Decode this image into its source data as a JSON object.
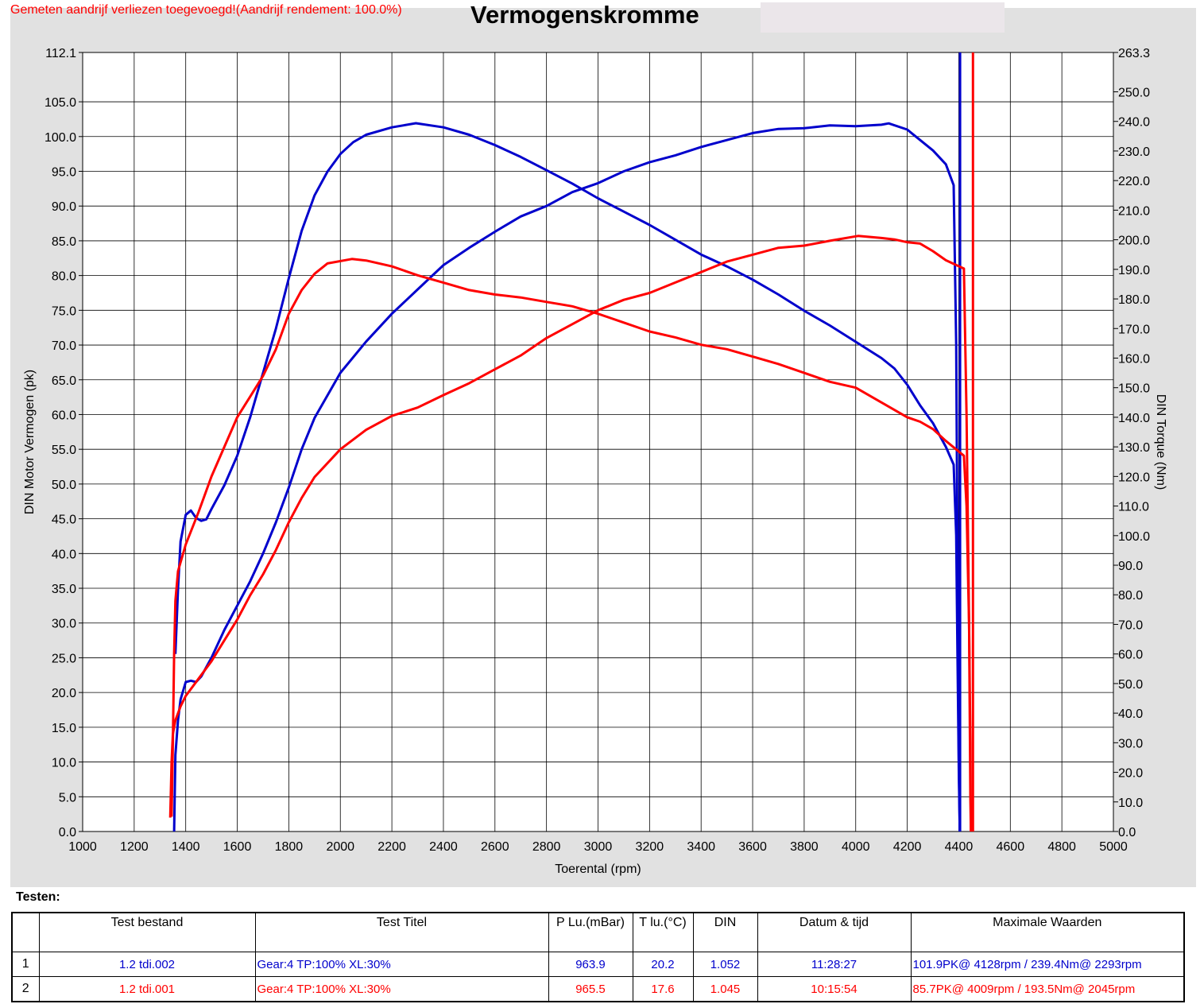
{
  "header": {
    "warning": "Gemeten aandrijf verliezen toegevoegd!(Aandrijf rendement: 100.0%)",
    "title": "Vermogenskromme"
  },
  "colors": {
    "run1": "#0000cc",
    "run2": "#ff0000",
    "panel": "#e1e1e1",
    "grid": "#000000"
  },
  "chart_data": {
    "type": "line",
    "title": "Vermogenskromme",
    "xlabel": "Toerental (rpm)",
    "ylabel": "DIN Motor Vermogen (pk)",
    "y2label": "DIN Torque (Nm)",
    "xlim": [
      1000,
      5000
    ],
    "ylim": [
      0,
      112.1
    ],
    "y2lim": [
      0,
      263.3
    ],
    "x_ticks": [
      "1000",
      "1200",
      "1400",
      "1600",
      "1800",
      "2000",
      "2200",
      "2400",
      "2600",
      "2800",
      "3000",
      "3200",
      "3400",
      "3600",
      "3800",
      "4000",
      "4200",
      "4400",
      "4600",
      "4800",
      "5000"
    ],
    "y_ticks": [
      {
        "v": 0,
        "label": "0.0"
      },
      {
        "v": 5,
        "label": "5.0"
      },
      {
        "v": 10,
        "label": "10.0"
      },
      {
        "v": 15,
        "label": "15.0"
      },
      {
        "v": 20,
        "label": "20.0"
      },
      {
        "v": 25,
        "label": "25.0"
      },
      {
        "v": 30,
        "label": "30.0"
      },
      {
        "v": 35,
        "label": "35.0"
      },
      {
        "v": 40,
        "label": "40.0"
      },
      {
        "v": 45,
        "label": "45.0"
      },
      {
        "v": 50,
        "label": "50.0"
      },
      {
        "v": 55,
        "label": "55.0"
      },
      {
        "v": 60,
        "label": "60.0"
      },
      {
        "v": 65,
        "label": "65.0"
      },
      {
        "v": 70,
        "label": "70.0"
      },
      {
        "v": 75,
        "label": "75.0"
      },
      {
        "v": 80,
        "label": "80.0"
      },
      {
        "v": 85,
        "label": "85.0"
      },
      {
        "v": 90,
        "label": "90.0"
      },
      {
        "v": 95,
        "label": "95.0"
      },
      {
        "v": 100,
        "label": "100.0"
      },
      {
        "v": 105,
        "label": "105.0"
      },
      {
        "v": 112.1,
        "label": "112.1"
      }
    ],
    "y2_ticks": [
      {
        "v": 0,
        "label": "0.0"
      },
      {
        "v": 10,
        "label": "10.0"
      },
      {
        "v": 20,
        "label": "20.0"
      },
      {
        "v": 30,
        "label": "30.0"
      },
      {
        "v": 40,
        "label": "40.0"
      },
      {
        "v": 50,
        "label": "50.0"
      },
      {
        "v": 60,
        "label": "60.0"
      },
      {
        "v": 70,
        "label": "70.0"
      },
      {
        "v": 80,
        "label": "80.0"
      },
      {
        "v": 90,
        "label": "90.0"
      },
      {
        "v": 100,
        "label": "100.0"
      },
      {
        "v": 110,
        "label": "110.0"
      },
      {
        "v": 120,
        "label": "120.0"
      },
      {
        "v": 130,
        "label": "130.0"
      },
      {
        "v": 140,
        "label": "140.0"
      },
      {
        "v": 150,
        "label": "150.0"
      },
      {
        "v": 160,
        "label": "160.0"
      },
      {
        "v": 170,
        "label": "170.0"
      },
      {
        "v": 180,
        "label": "180.0"
      },
      {
        "v": 190,
        "label": "190.0"
      },
      {
        "v": 200,
        "label": "200.0"
      },
      {
        "v": 210,
        "label": "210.0"
      },
      {
        "v": 220,
        "label": "220.0"
      },
      {
        "v": 230,
        "label": "230.0"
      },
      {
        "v": 240,
        "label": "240.0"
      },
      {
        "v": 250,
        "label": "250.0"
      },
      {
        "v": 263.3,
        "label": "263.3"
      }
    ],
    "grid": true,
    "series": [
      {
        "axis": "power",
        "color": "#0000cc",
        "points": [
          [
            1355,
            0
          ],
          [
            1360,
            11
          ],
          [
            1370,
            16
          ],
          [
            1380,
            19
          ],
          [
            1400,
            21.5
          ],
          [
            1420,
            21.7
          ],
          [
            1440,
            21.5
          ],
          [
            1460,
            22.3
          ],
          [
            1500,
            25
          ],
          [
            1550,
            29
          ],
          [
            1600,
            32.5
          ],
          [
            1650,
            36
          ],
          [
            1700,
            40
          ],
          [
            1750,
            44.5
          ],
          [
            1800,
            49.5
          ],
          [
            1850,
            55
          ],
          [
            1900,
            59.5
          ],
          [
            2000,
            66
          ],
          [
            2100,
            70.5
          ],
          [
            2200,
            74.5
          ],
          [
            2300,
            78
          ],
          [
            2400,
            81.5
          ],
          [
            2500,
            84
          ],
          [
            2600,
            86.3
          ],
          [
            2700,
            88.5
          ],
          [
            2800,
            90
          ],
          [
            2900,
            92
          ],
          [
            3000,
            93.3
          ],
          [
            3100,
            95
          ],
          [
            3200,
            96.3
          ],
          [
            3300,
            97.3
          ],
          [
            3400,
            98.5
          ],
          [
            3500,
            99.5
          ],
          [
            3600,
            100.5
          ],
          [
            3700,
            101.1
          ],
          [
            3800,
            101.2
          ],
          [
            3900,
            101.6
          ],
          [
            4000,
            101.5
          ],
          [
            4100,
            101.7
          ],
          [
            4128,
            101.9
          ],
          [
            4200,
            101
          ],
          [
            4250,
            99.5
          ],
          [
            4300,
            98
          ],
          [
            4350,
            96
          ],
          [
            4380,
            93
          ],
          [
            4390,
            70
          ],
          [
            4395,
            40
          ],
          [
            4400,
            10
          ],
          [
            4404,
            0
          ]
        ]
      },
      {
        "axis": "torque",
        "color": "#0000cc",
        "points": [
          [
            1360,
            60
          ],
          [
            1370,
            82
          ],
          [
            1380,
            98
          ],
          [
            1400,
            107
          ],
          [
            1420,
            108.5
          ],
          [
            1440,
            106
          ],
          [
            1460,
            105
          ],
          [
            1480,
            105.5
          ],
          [
            1500,
            109
          ],
          [
            1550,
            117
          ],
          [
            1600,
            127
          ],
          [
            1650,
            140
          ],
          [
            1700,
            155
          ],
          [
            1750,
            170
          ],
          [
            1800,
            187
          ],
          [
            1850,
            203
          ],
          [
            1900,
            215
          ],
          [
            1950,
            223
          ],
          [
            2000,
            229
          ],
          [
            2050,
            233
          ],
          [
            2100,
            235.5
          ],
          [
            2200,
            238
          ],
          [
            2293,
            239.4
          ],
          [
            2400,
            238
          ],
          [
            2500,
            235.5
          ],
          [
            2600,
            232
          ],
          [
            2700,
            228
          ],
          [
            2800,
            223.5
          ],
          [
            2900,
            219
          ],
          [
            3000,
            214
          ],
          [
            3100,
            209.5
          ],
          [
            3200,
            205
          ],
          [
            3300,
            200
          ],
          [
            3400,
            195
          ],
          [
            3500,
            191
          ],
          [
            3600,
            186.5
          ],
          [
            3700,
            181.5
          ],
          [
            3800,
            176
          ],
          [
            3900,
            171
          ],
          [
            4000,
            165.5
          ],
          [
            4100,
            160
          ],
          [
            4150,
            156.5
          ],
          [
            4200,
            151
          ],
          [
            4250,
            144
          ],
          [
            4300,
            138
          ],
          [
            4350,
            130
          ],
          [
            4380,
            124
          ],
          [
            4390,
            100
          ],
          [
            4395,
            60
          ],
          [
            4400,
            20
          ],
          [
            4404,
            0
          ]
        ]
      },
      {
        "axis": "power",
        "color": "#ff0000",
        "points": [
          [
            1340,
            2
          ],
          [
            1345,
            10
          ],
          [
            1350,
            14
          ],
          [
            1360,
            16
          ],
          [
            1380,
            18
          ],
          [
            1400,
            19.5
          ],
          [
            1450,
            22
          ],
          [
            1500,
            24.5
          ],
          [
            1550,
            27.5
          ],
          [
            1600,
            30.5
          ],
          [
            1650,
            34
          ],
          [
            1700,
            37
          ],
          [
            1750,
            40.5
          ],
          [
            1800,
            44.5
          ],
          [
            1850,
            48
          ],
          [
            1900,
            51
          ],
          [
            2000,
            55
          ],
          [
            2100,
            57.8
          ],
          [
            2200,
            59.8
          ],
          [
            2300,
            61
          ],
          [
            2400,
            62.8
          ],
          [
            2500,
            64.5
          ],
          [
            2600,
            66.5
          ],
          [
            2700,
            68.5
          ],
          [
            2800,
            71
          ],
          [
            2900,
            73
          ],
          [
            3000,
            75
          ],
          [
            3100,
            76.5
          ],
          [
            3200,
            77.5
          ],
          [
            3300,
            79
          ],
          [
            3400,
            80.5
          ],
          [
            3500,
            82
          ],
          [
            3600,
            83
          ],
          [
            3700,
            84
          ],
          [
            3800,
            84.3
          ],
          [
            3900,
            85
          ],
          [
            4009,
            85.7
          ],
          [
            4100,
            85.4
          ],
          [
            4150,
            85.2
          ],
          [
            4200,
            84.8
          ],
          [
            4250,
            84.6
          ],
          [
            4300,
            83.5
          ],
          [
            4350,
            82.2
          ],
          [
            4420,
            81
          ],
          [
            4430,
            60
          ],
          [
            4440,
            30
          ],
          [
            4445,
            5
          ],
          [
            4447,
            0
          ]
        ]
      },
      {
        "axis": "torque",
        "color": "#ff0000",
        "points": [
          [
            1345,
            5
          ],
          [
            1350,
            30
          ],
          [
            1355,
            60
          ],
          [
            1360,
            78
          ],
          [
            1370,
            88
          ],
          [
            1400,
            97
          ],
          [
            1450,
            108
          ],
          [
            1500,
            120
          ],
          [
            1550,
            130
          ],
          [
            1600,
            140
          ],
          [
            1650,
            147
          ],
          [
            1700,
            154
          ],
          [
            1750,
            163
          ],
          [
            1800,
            175
          ],
          [
            1850,
            183
          ],
          [
            1900,
            188.5
          ],
          [
            1950,
            192
          ],
          [
            2045,
            193.5
          ],
          [
            2100,
            193
          ],
          [
            2200,
            191
          ],
          [
            2300,
            188
          ],
          [
            2400,
            185.5
          ],
          [
            2500,
            183
          ],
          [
            2600,
            181.5
          ],
          [
            2700,
            180.5
          ],
          [
            2800,
            179
          ],
          [
            2900,
            177.5
          ],
          [
            3000,
            175
          ],
          [
            3100,
            172
          ],
          [
            3200,
            169
          ],
          [
            3300,
            167
          ],
          [
            3400,
            164.5
          ],
          [
            3500,
            163
          ],
          [
            3600,
            160.5
          ],
          [
            3700,
            158
          ],
          [
            3800,
            155
          ],
          [
            3900,
            152
          ],
          [
            4000,
            150
          ],
          [
            4100,
            145
          ],
          [
            4200,
            140
          ],
          [
            4250,
            138.5
          ],
          [
            4300,
            136
          ],
          [
            4350,
            132
          ],
          [
            4420,
            127
          ],
          [
            4430,
            110
          ],
          [
            4440,
            70
          ],
          [
            4445,
            30
          ],
          [
            4447,
            0
          ]
        ]
      }
    ],
    "spikes": [
      {
        "color": "#0000cc",
        "x": 4405,
        "from": 0,
        "to": 112.1
      },
      {
        "color": "#ff0000",
        "x": 4455,
        "from": 0,
        "to": 112.1
      }
    ]
  },
  "tests": {
    "label": "Testen:",
    "columns": [
      "",
      "Test bestand",
      "Test Titel",
      "P Lu.(mBar)",
      "T lu.(°C)",
      "DIN",
      "Datum & tijd",
      "Maximale Waarden"
    ],
    "rows": [
      {
        "num": "1",
        "file": "1.2 tdi.002",
        "title": "Gear:4 TP:100% XL:30%",
        "p": "963.9",
        "t": "20.2",
        "din": "1.052",
        "time": "11:28:27",
        "max": "101.9PK@ 4128rpm / 239.4Nm@ 2293rpm"
      },
      {
        "num": "2",
        "file": "1.2 tdi.001",
        "title": "Gear:4 TP:100% XL:30%",
        "p": "965.5",
        "t": "17.6",
        "din": "1.045",
        "time": "10:15:54",
        "max": "85.7PK@ 4009rpm / 193.5Nm@ 2045rpm"
      }
    ]
  }
}
